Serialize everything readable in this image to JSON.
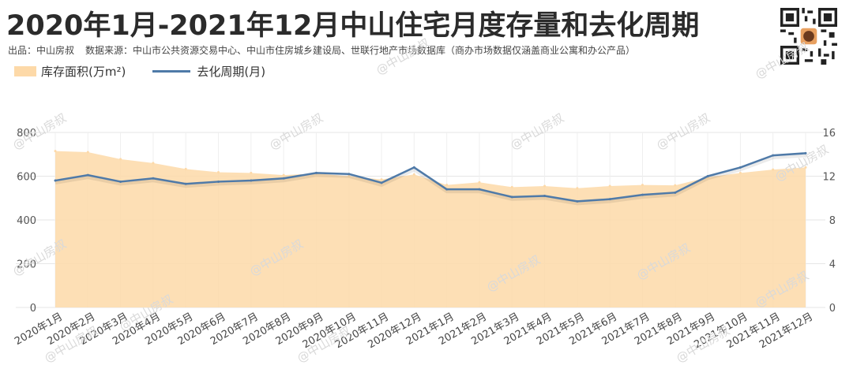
{
  "title": "2020年1月-2021年12月中山住宅月度存量和去化周期",
  "source": {
    "publisher": "出品：中山房叔",
    "data_source": "数据来源：中山市公共资源交易中心、中山市住房城乡建设局、世联行地产市场数据库（商办市场数据仅涵盖商业公寓和办公产品）"
  },
  "watermark_text": "@中山房叔",
  "colors": {
    "area": "#fdd9a8",
    "line": "#4f7aa8",
    "grid": "#e6e6e6"
  },
  "chart_data": {
    "type": "area",
    "categories": [
      "2020年1月",
      "2020年2月",
      "2020年3月",
      "2020年4月",
      "2020年5月",
      "2020年6月",
      "2020年7月",
      "2020年8月",
      "2020年9月",
      "2020年10月",
      "2020年11月",
      "2020年12月",
      "2021年1月",
      "2021年2月",
      "2021年3月",
      "2021年4月",
      "2021年5月",
      "2021年6月",
      "2021年7月",
      "2021年8月",
      "2021年9月",
      "2021年10月",
      "2021年11月",
      "2021年12月"
    ],
    "series": [
      {
        "name": "库存面积(万m²)",
        "type": "area",
        "axis": "left",
        "values": [
          715,
          710,
          678,
          660,
          633,
          618,
          615,
          605,
          612,
          600,
          585,
          608,
          560,
          572,
          550,
          555,
          545,
          555,
          560,
          558,
          595,
          615,
          630,
          640
        ]
      },
      {
        "name": "去化周期(月)",
        "type": "line",
        "axis": "right",
        "values": [
          11.6,
          12.1,
          11.5,
          11.8,
          11.3,
          11.5,
          11.6,
          11.8,
          12.3,
          12.2,
          11.4,
          12.8,
          10.8,
          10.8,
          10.1,
          10.2,
          9.7,
          9.9,
          10.3,
          10.5,
          12.0,
          12.8,
          13.9,
          14.1
        ]
      }
    ],
    "y_left": {
      "min": 0,
      "max": 800,
      "ticks": [
        0,
        200,
        400,
        600,
        800
      ]
    },
    "y_right": {
      "min": 0,
      "max": 16,
      "ticks": [
        0,
        4,
        8,
        12,
        16
      ]
    },
    "grid": true,
    "legend_position": "top-left"
  }
}
